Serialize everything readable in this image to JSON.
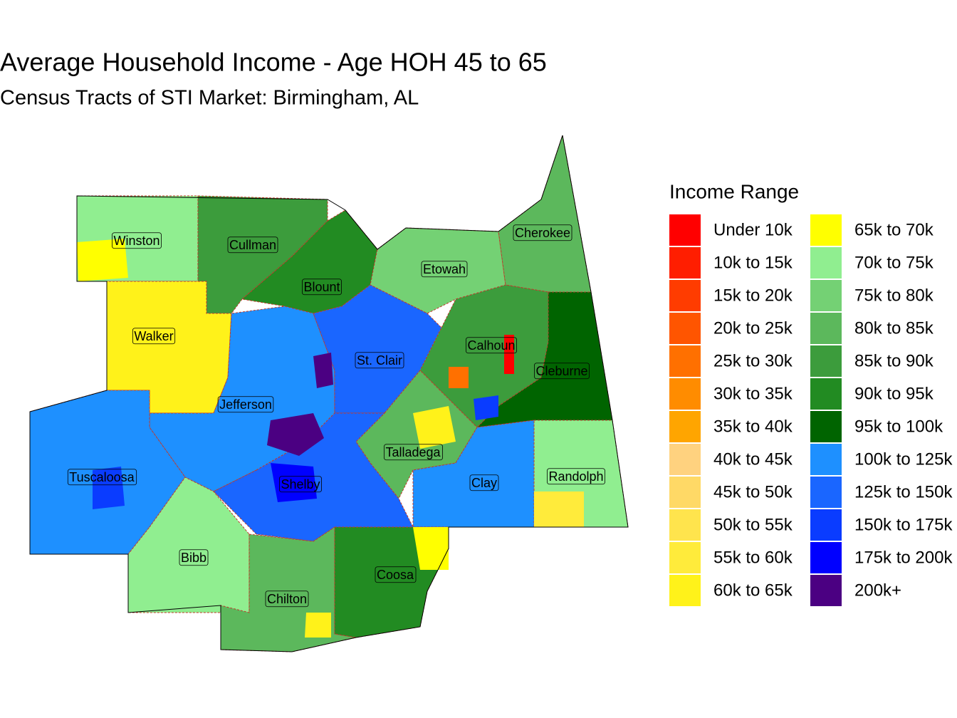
{
  "title": "Average Household Income - Age HOH 45 to 65",
  "subtitle": "Census Tracts of STI Market: Birmingham, AL",
  "legend": {
    "title": "Income Range",
    "items": [
      {
        "label": "Under 10k",
        "color": "#ff0000"
      },
      {
        "label": "10k to 15k",
        "color": "#ff1e00"
      },
      {
        "label": "15k to 20k",
        "color": "#ff3c00"
      },
      {
        "label": "20k to 25k",
        "color": "#ff5500"
      },
      {
        "label": "25k to 30k",
        "color": "#ff7000"
      },
      {
        "label": "30k to 35k",
        "color": "#ff8c00"
      },
      {
        "label": "35k to 40k",
        "color": "#ffa500"
      },
      {
        "label": "40k to 45k",
        "color": "#ffd27f"
      },
      {
        "label": "45k to 50k",
        "color": "#ffd966"
      },
      {
        "label": "50k to 55k",
        "color": "#ffe44d"
      },
      {
        "label": "55k to 60k",
        "color": "#ffeb3b"
      },
      {
        "label": "60k to 65k",
        "color": "#fff21a"
      },
      {
        "label": "65k to 70k",
        "color": "#ffff00"
      },
      {
        "label": "70k to 75k",
        "color": "#90ee90"
      },
      {
        "label": "75k to 80k",
        "color": "#74d174"
      },
      {
        "label": "80k to 85k",
        "color": "#5cb85c"
      },
      {
        "label": "85k to 90k",
        "color": "#3c9c3c"
      },
      {
        "label": "90k to 95k",
        "color": "#228b22"
      },
      {
        "label": "95k to 100k",
        "color": "#006400"
      },
      {
        "label": "100k to 125k",
        "color": "#1e90ff"
      },
      {
        "label": "125k to 150k",
        "color": "#1a66ff"
      },
      {
        "label": "150k to 175k",
        "color": "#0a3cff"
      },
      {
        "label": "175k to 200k",
        "color": "#0000ff"
      },
      {
        "label": "200k+",
        "color": "#4b0082"
      }
    ]
  },
  "counties": [
    "Winston",
    "Cullman",
    "Blount",
    "Etowah",
    "Cherokee",
    "Walker",
    "Jefferson",
    "St. Clair",
    "Calhoun",
    "Cleburne",
    "Tuscaloosa",
    "Talladega",
    "Clay",
    "Randolph",
    "Shelby",
    "Bibb",
    "Chilton",
    "Coosa"
  ]
}
